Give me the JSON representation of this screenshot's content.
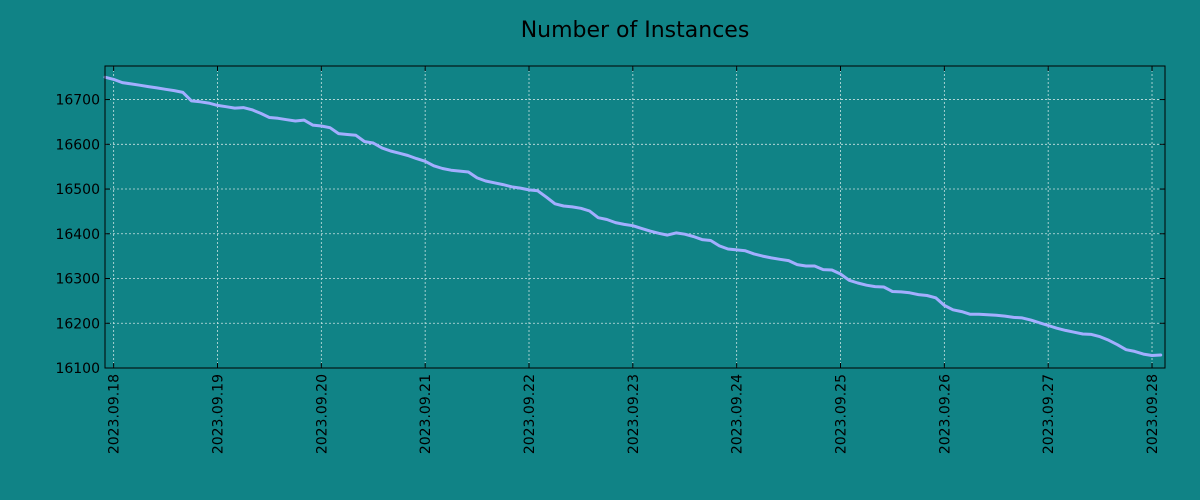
{
  "chart_data": {
    "type": "line",
    "title": "Number of Instances",
    "xlabel": "",
    "ylabel": "",
    "x_tick_labels": [
      "2023.09.18",
      "2023.09.19",
      "2023.09.20",
      "2023.09.21",
      "2023.09.22",
      "2023.09.23",
      "2023.09.24",
      "2023.09.25",
      "2023.09.26",
      "2023.09.27",
      "2023.09.28"
    ],
    "y_ticks": [
      16100,
      16200,
      16300,
      16400,
      16500,
      16600,
      16700
    ],
    "ylim": [
      16100,
      16775
    ],
    "xlim": [
      "2023-09-17 22:00",
      "2023-09-28 03:00"
    ],
    "grid": true,
    "colors": {
      "background": "#108386",
      "line": "#a3aeff",
      "grid": "#c9e2e2",
      "axes": "#000000"
    },
    "series": [
      {
        "x": [
          "2023-09-17 22:00",
          "2023-09-18 00:00",
          "2023-09-18 02:00",
          "2023-09-18 04:00",
          "2023-09-18 06:00",
          "2023-09-18 08:00",
          "2023-09-18 10:00",
          "2023-09-18 12:00",
          "2023-09-18 14:00",
          "2023-09-18 16:00",
          "2023-09-18 18:00",
          "2023-09-18 20:00",
          "2023-09-18 22:00",
          "2023-09-19 00:00",
          "2023-09-19 02:00",
          "2023-09-19 04:00",
          "2023-09-19 06:00",
          "2023-09-19 08:00",
          "2023-09-19 10:00",
          "2023-09-19 12:00",
          "2023-09-19 14:00",
          "2023-09-19 16:00",
          "2023-09-19 18:00",
          "2023-09-19 20:00",
          "2023-09-19 22:00",
          "2023-09-20 00:00",
          "2023-09-20 02:00",
          "2023-09-20 04:00",
          "2023-09-20 06:00",
          "2023-09-20 08:00",
          "2023-09-20 10:00",
          "2023-09-20 12:00",
          "2023-09-20 14:00",
          "2023-09-20 16:00",
          "2023-09-20 18:00",
          "2023-09-20 20:00",
          "2023-09-20 22:00",
          "2023-09-21 00:00",
          "2023-09-21 02:00",
          "2023-09-21 04:00",
          "2023-09-21 06:00",
          "2023-09-21 08:00",
          "2023-09-21 10:00",
          "2023-09-21 12:00",
          "2023-09-21 14:00",
          "2023-09-21 16:00",
          "2023-09-21 18:00",
          "2023-09-21 20:00",
          "2023-09-21 22:00",
          "2023-09-22 00:00",
          "2023-09-22 02:00",
          "2023-09-22 04:00",
          "2023-09-22 06:00",
          "2023-09-22 08:00",
          "2023-09-22 10:00",
          "2023-09-22 12:00",
          "2023-09-22 14:00",
          "2023-09-22 16:00",
          "2023-09-22 18:00",
          "2023-09-22 20:00",
          "2023-09-22 22:00",
          "2023-09-23 00:00",
          "2023-09-23 02:00",
          "2023-09-23 04:00",
          "2023-09-23 06:00",
          "2023-09-23 08:00",
          "2023-09-23 10:00",
          "2023-09-23 12:00",
          "2023-09-23 14:00",
          "2023-09-23 16:00",
          "2023-09-23 18:00",
          "2023-09-23 20:00",
          "2023-09-23 22:00",
          "2023-09-24 00:00",
          "2023-09-24 02:00",
          "2023-09-24 04:00",
          "2023-09-24 06:00",
          "2023-09-24 08:00",
          "2023-09-24 10:00",
          "2023-09-24 12:00",
          "2023-09-24 14:00",
          "2023-09-24 16:00",
          "2023-09-24 18:00",
          "2023-09-24 20:00",
          "2023-09-24 22:00",
          "2023-09-25 00:00",
          "2023-09-25 02:00",
          "2023-09-25 04:00",
          "2023-09-25 06:00",
          "2023-09-25 08:00",
          "2023-09-25 10:00",
          "2023-09-25 12:00",
          "2023-09-25 14:00",
          "2023-09-25 16:00",
          "2023-09-25 18:00",
          "2023-09-25 20:00",
          "2023-09-25 22:00",
          "2023-09-26 00:00",
          "2023-09-26 02:00",
          "2023-09-26 04:00",
          "2023-09-26 06:00",
          "2023-09-26 08:00",
          "2023-09-26 10:00",
          "2023-09-26 12:00",
          "2023-09-26 14:00",
          "2023-09-26 16:00",
          "2023-09-26 18:00",
          "2023-09-26 20:00",
          "2023-09-26 22:00",
          "2023-09-27 00:00",
          "2023-09-27 02:00",
          "2023-09-27 04:00",
          "2023-09-27 06:00",
          "2023-09-27 08:00",
          "2023-09-27 10:00",
          "2023-09-27 12:00",
          "2023-09-27 14:00",
          "2023-09-27 16:00",
          "2023-09-27 18:00",
          "2023-09-27 20:00",
          "2023-09-27 22:00",
          "2023-09-28 00:00",
          "2023-09-28 02:00"
        ],
        "y": [
          16750,
          16745,
          16738,
          16735,
          16732,
          16729,
          16726,
          16723,
          16720,
          16716,
          16697,
          16695,
          16692,
          16687,
          16684,
          16681,
          16682,
          16677,
          16669,
          16660,
          16658,
          16655,
          16652,
          16654,
          16643,
          16641,
          16637,
          16624,
          16622,
          16620,
          16606,
          16603,
          16592,
          16585,
          16580,
          16575,
          16568,
          16562,
          16552,
          16546,
          16542,
          16540,
          16538,
          16525,
          16518,
          16514,
          16510,
          16505,
          16502,
          16498,
          16496,
          16482,
          16467,
          16462,
          16460,
          16457,
          16451,
          16436,
          16432,
          16425,
          16421,
          16418,
          16412,
          16406,
          16401,
          16397,
          16402,
          16399,
          16394,
          16387,
          16385,
          16373,
          16366,
          16364,
          16362,
          16355,
          16350,
          16346,
          16343,
          16340,
          16331,
          16328,
          16328,
          16320,
          16319,
          16310,
          16296,
          16290,
          16285,
          16282,
          16281,
          16271,
          16270,
          16268,
          16264,
          16262,
          16257,
          16240,
          16230,
          16226,
          16220,
          16220,
          16219,
          16218,
          16216,
          16213,
          16212,
          16207,
          16201,
          16195,
          16189,
          16184,
          16180,
          16176,
          16175,
          16170,
          16162,
          16152,
          16141,
          16137,
          16131,
          16128,
          16129
        ]
      }
    ]
  }
}
